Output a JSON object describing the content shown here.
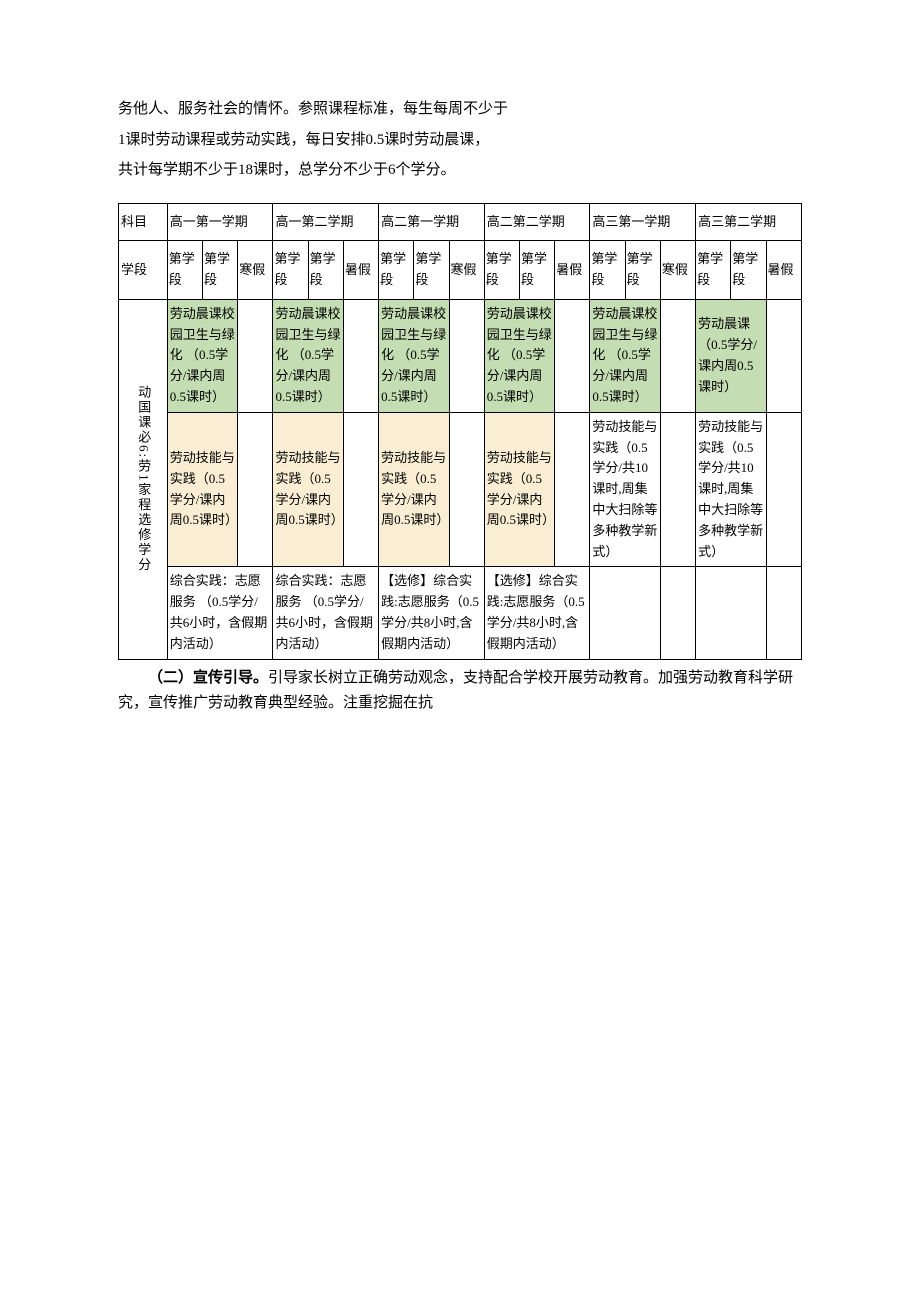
{
  "intro": {
    "line1": "务他人、服务社会的情怀。参照课程标准，每生每周不少于",
    "line2": "1课时劳动课程或劳动实践，每日安排0.5课时劳动晨课，",
    "line3": "共计每学期不少于18课时，总学分不少于6个学分。"
  },
  "table": {
    "headers": {
      "subject": "科目",
      "g1s1": "高一第一学期",
      "g1s2": "高一第二学期",
      "g2s1": "高二第一学期",
      "g2s2": "高二第二学期",
      "g3s1": "高三第一学期",
      "g3s2": "高三第二学期"
    },
    "subheaders": {
      "period": "学段",
      "seg1": "第学段",
      "seg2": "第学段",
      "winter": "寒假",
      "summer": "暑假"
    },
    "rowlabel": "动国课必6:劳1家程选修学分",
    "row1": {
      "a": "劳动晨课校园卫生与绿化   （0.5学分/课内周0.5课时）",
      "f": "劳动晨课（0.5学分/课内周0.5课时）"
    },
    "row2": {
      "a": "劳动技能与实践（0.5学分/课内周0.5课时）",
      "e": "劳动技能与实践（0.5学分/共10课时,周集中大扫除等多种教学新式）"
    },
    "row3": {
      "a": "综合实践：志愿服务    （0.5学分/共6小时，含假期内活动）",
      "c": "【选修】综合实践:志愿服务（0.5学分/共8小时,含假期内活动）"
    },
    "colors": {
      "green": "#c4ddb2",
      "yellow": "#f9eed4"
    }
  },
  "footer": {
    "heading": "（二）宣传引导。",
    "text": "引导家长树立正确劳动观念，支持配合学校开展劳动教育。加强劳动教育科学研究，宣传推广劳动教育典型经验。注重挖掘在抗"
  }
}
